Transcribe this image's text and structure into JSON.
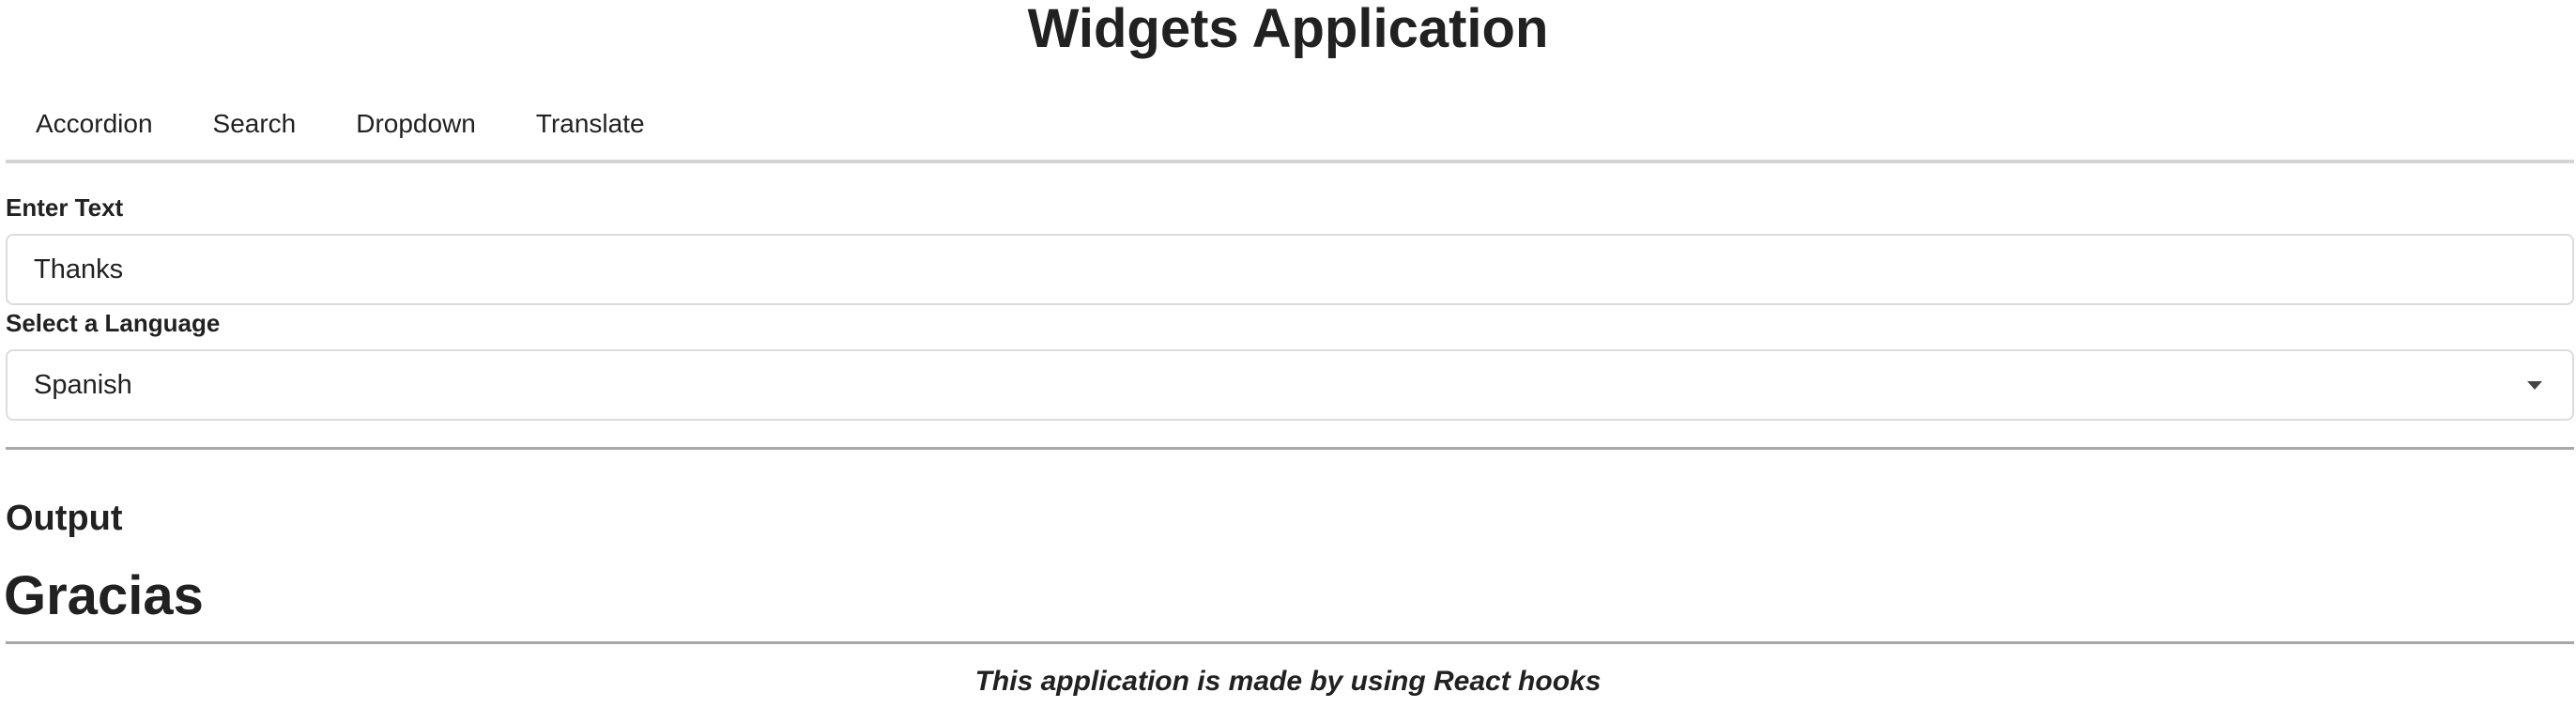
{
  "header": {
    "title": "Widgets Application"
  },
  "nav": {
    "items": [
      {
        "label": "Accordion"
      },
      {
        "label": "Search"
      },
      {
        "label": "Dropdown"
      },
      {
        "label": "Translate"
      }
    ]
  },
  "form": {
    "text_label": "Enter Text",
    "text_value": "Thanks",
    "language_label": "Select a Language",
    "language_value": "Spanish"
  },
  "output": {
    "heading": "Output",
    "value": "Gracias"
  },
  "footer": {
    "note": "This application is made by using React hooks"
  },
  "colors": {
    "text": "#212121",
    "divider": "#a8a8a8",
    "border": "#dcdcdc"
  },
  "icons": {
    "dropdown": "caret-down-icon"
  }
}
